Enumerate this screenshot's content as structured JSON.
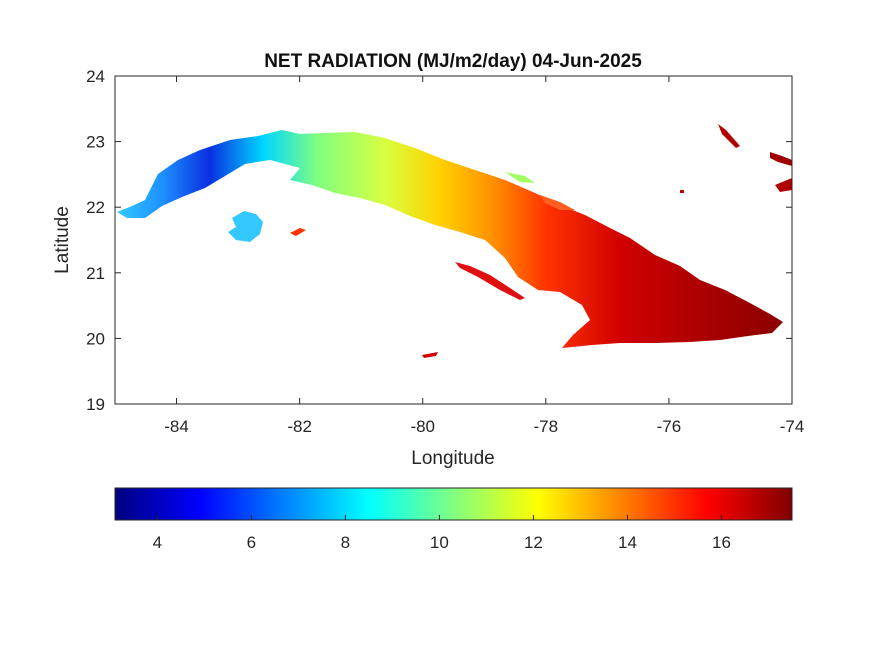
{
  "figure": {
    "title": "NET RADIATION (MJ/m2/day) 04-Jun-2025",
    "xlabel": "Longitude",
    "ylabel": "Latitude"
  },
  "map": {
    "xlim": [
      -85,
      -74
    ],
    "ylim": [
      19,
      24
    ],
    "x_ticks": [
      "-84",
      "-82",
      "-80",
      "-78",
      "-76",
      "-74"
    ],
    "y_ticks": [
      "19",
      "20",
      "21",
      "22",
      "23",
      "24"
    ],
    "region": "Cuba",
    "variable": "net radiation",
    "colormap": "jet",
    "gradient_pattern": "low in west, high in east"
  },
  "colorbar": {
    "range": [
      3.1,
      17.5
    ],
    "ticks": [
      "4",
      "6",
      "8",
      "10",
      "12",
      "14",
      "16"
    ],
    "colors": [
      "#000080",
      "#0000ff",
      "#0080ff",
      "#00ffff",
      "#80ff80",
      "#ffff00",
      "#ff8000",
      "#ff0000",
      "#800000"
    ]
  }
}
